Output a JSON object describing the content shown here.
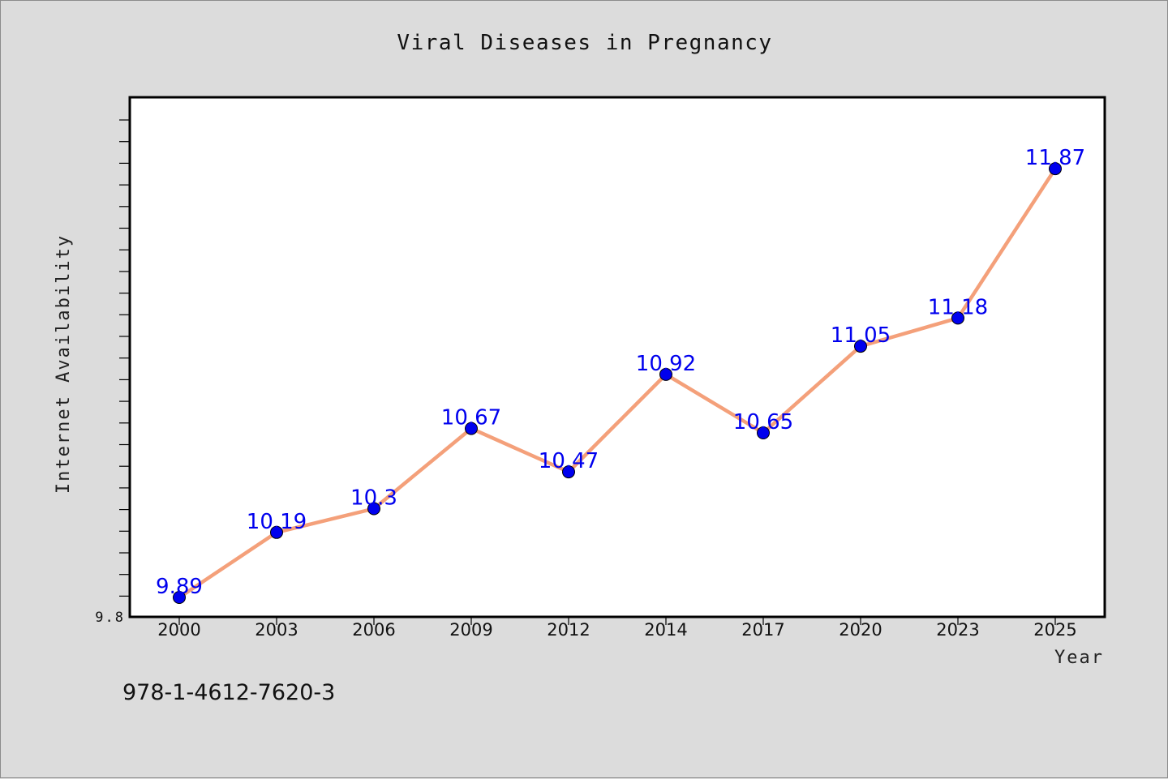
{
  "chart_data": {
    "type": "line",
    "title": "Viral Diseases in Pregnancy",
    "xlabel": "Year",
    "ylabel": "Internet Availability",
    "categories": [
      "2000",
      "2003",
      "2006",
      "2009",
      "2012",
      "2014",
      "2017",
      "2020",
      "2023",
      "2025"
    ],
    "series": [
      {
        "values": [
          9.89,
          10.19,
          10.3,
          10.67,
          10.47,
          10.92,
          10.65,
          11.05,
          11.18,
          11.87
        ],
        "data_labels": [
          "9.89",
          "10.19",
          "10.3",
          "10.67",
          "10.47",
          "10.92",
          "10.65",
          "11.05",
          "11.18",
          "11.87"
        ],
        "line_color": "#f4a07a",
        "marker_color": "#0000ee"
      }
    ],
    "ylim": [
      9.8,
      12.2
    ],
    "y_tick_label": "9.8",
    "grid": false,
    "legend": "none",
    "background": "#ffffff"
  },
  "footer": {
    "isbn": "978-1-4612-7620-3"
  }
}
